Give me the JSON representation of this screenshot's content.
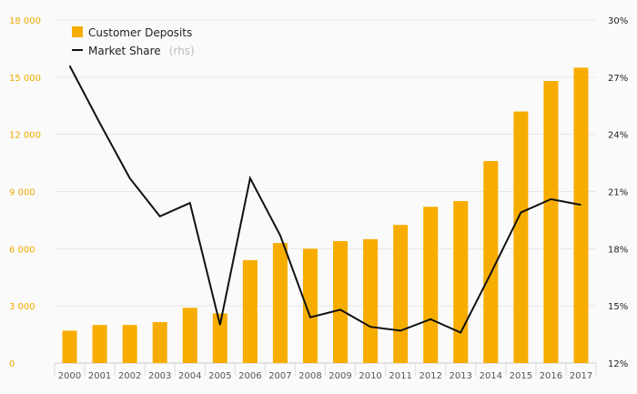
{
  "chart_data": {
    "type": "bar",
    "categories": [
      "2000",
      "2001",
      "2002",
      "2003",
      "2004",
      "2005",
      "2006",
      "2007",
      "2008",
      "2009",
      "2010",
      "2011",
      "2012",
      "2013",
      "2014",
      "2015",
      "2016",
      "2017"
    ],
    "y_left": {
      "ticks": [
        "0",
        "3 000",
        "6 000",
        "9 000",
        "12 000",
        "15 000",
        "18 000"
      ],
      "lim": [
        0,
        18000
      ]
    },
    "y_right": {
      "ticks": [
        "12%",
        "15%",
        "18%",
        "21%",
        "24%",
        "27%",
        "30%"
      ],
      "lim": [
        12,
        30
      ]
    },
    "grid": true,
    "legend": {
      "position": "top-left",
      "bar_label": "Customer Deposits",
      "line_label": "Market Share",
      "line_suffix": "(rhs)"
    },
    "series": [
      {
        "name": "Customer Deposits",
        "kind": "bar",
        "axis": "left",
        "color": "#f7ad00",
        "values": [
          1700,
          2000,
          2000,
          2150,
          2900,
          2600,
          5400,
          6300,
          6000,
          6400,
          6500,
          7250,
          8200,
          8500,
          10600,
          13200,
          14800,
          15500
        ]
      },
      {
        "name": "Market Share",
        "kind": "line",
        "axis": "right",
        "color": "#111111",
        "values": [
          27.6,
          24.6,
          21.7,
          19.7,
          20.4,
          14.0,
          21.7,
          18.7,
          14.4,
          14.8,
          13.9,
          13.7,
          14.3,
          13.6,
          16.7,
          19.9,
          20.6,
          20.3
        ]
      }
    ]
  }
}
